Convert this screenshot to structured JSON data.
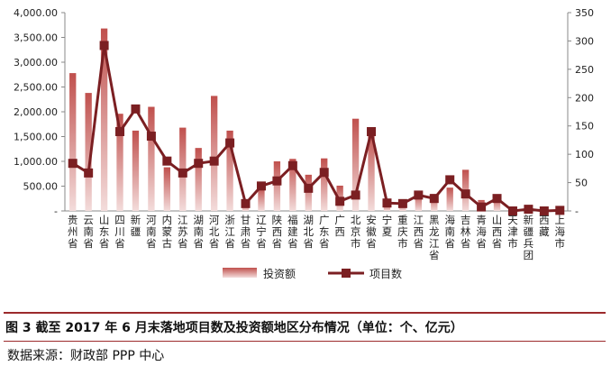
{
  "chart_data": {
    "type": "bar+line",
    "categories": [
      "贵州省",
      "云南省",
      "山东省",
      "四川省",
      "新疆",
      "河南省",
      "内蒙古",
      "江苏省",
      "湖南省",
      "河北省",
      "浙江省",
      "甘肃省",
      "辽宁省",
      "陕西省",
      "福建省",
      "湖北省",
      "广东省",
      "广西",
      "北京市",
      "安徽省",
      "宁夏",
      "重庆市",
      "江西省",
      "黑龙江省",
      "海南省",
      "吉林省",
      "青海省",
      "山西省",
      "天津市",
      "新疆兵团",
      "西藏",
      "上海市"
    ],
    "series": [
      {
        "name": "投资额",
        "type": "bar",
        "axis": "left",
        "color": "#c0504d",
        "values": [
          2780,
          2380,
          3680,
          1960,
          1620,
          2100,
          880,
          1680,
          1270,
          2320,
          1620,
          150,
          470,
          1000,
          1050,
          730,
          1060,
          510,
          1860,
          1630,
          150,
          190,
          360,
          340,
          470,
          830,
          220,
          270,
          40,
          40,
          10,
          20
        ]
      },
      {
        "name": "项目数",
        "type": "line",
        "axis": "right",
        "color": "#7b1f22",
        "values": [
          84,
          67,
          292,
          140,
          180,
          132,
          88,
          67,
          84,
          88,
          120,
          13,
          44,
          53,
          80,
          40,
          68,
          17,
          28,
          140,
          14,
          13,
          28,
          22,
          55,
          30,
          7,
          22,
          0,
          3,
          0,
          1
        ]
      }
    ],
    "y_left": {
      "min": 0,
      "max": 4000,
      "ticks": [
        "-",
        "500.00",
        "1,000.00",
        "1,500.00",
        "2,000.00",
        "2,500.00",
        "3,000.00",
        "3,500.00",
        "4,000.00"
      ]
    },
    "y_right": {
      "min": 0,
      "max": 350,
      "ticks": [
        "-",
        "50",
        "100",
        "150",
        "200",
        "250",
        "300",
        "350"
      ]
    },
    "legend": {
      "position": "bottom",
      "items": [
        "投资额",
        "项目数"
      ]
    }
  },
  "caption": "图 3   截至 2017 年 6 月末落地项目数及投资额地区分布情况（单位：个、亿元）",
  "source": "数据来源：财政部 PPP 中心"
}
